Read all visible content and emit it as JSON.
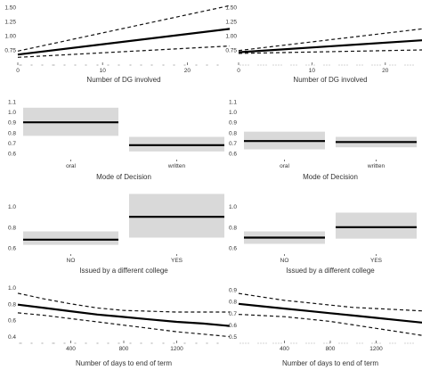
{
  "chart_data": [
    {
      "id": "p1",
      "type": "line",
      "xlabel": "Number of DG involved",
      "xlim": [
        0,
        25
      ],
      "ylim": [
        0.5,
        1.55
      ],
      "xticks": [
        0,
        10,
        20
      ],
      "yticks": [
        0.75,
        1.0,
        1.25,
        1.5
      ],
      "ytick_labels": [
        "0.75",
        "1.00",
        "1.25",
        "1.50"
      ],
      "x": [
        0,
        25
      ],
      "estimate": [
        0.67,
        1.12
      ],
      "ci_lower": [
        0.62,
        0.82
      ],
      "ci_upper": [
        0.73,
        1.53
      ]
    },
    {
      "id": "p2",
      "type": "line",
      "xlabel": "Number of DG involved",
      "xlim": [
        0,
        25
      ],
      "ylim": [
        0.5,
        1.55
      ],
      "xticks": [
        0,
        10,
        20
      ],
      "yticks": [
        0.75,
        1.0,
        1.25,
        1.5
      ],
      "ytick_labels": [
        "0.75",
        "1.00",
        "1.25",
        "1.50"
      ],
      "x": [
        0,
        25
      ],
      "estimate": [
        0.71,
        0.92
      ],
      "ci_lower": [
        0.69,
        0.75
      ],
      "ci_upper": [
        0.74,
        1.12
      ]
    },
    {
      "id": "p3",
      "type": "bar",
      "xlabel": "Mode of Decision",
      "ylim": [
        0.55,
        1.15
      ],
      "yticks": [
        0.6,
        0.7,
        0.8,
        0.9,
        1.0,
        1.1
      ],
      "ytick_labels": [
        "0.6",
        "0.7",
        "0.8",
        "0.9",
        "1.0",
        "1.1"
      ],
      "categories": [
        "oral",
        "written"
      ],
      "estimate": [
        0.9,
        0.68
      ],
      "ci_lower": [
        0.77,
        0.62
      ],
      "ci_upper": [
        1.04,
        0.76
      ]
    },
    {
      "id": "p4",
      "type": "bar",
      "xlabel": "Mode of Decision",
      "ylim": [
        0.55,
        1.15
      ],
      "yticks": [
        0.6,
        0.7,
        0.8,
        0.9,
        1.0,
        1.1
      ],
      "ytick_labels": [
        "0.6",
        "0.7",
        "0.8",
        "0.9",
        "1.0",
        "1.1"
      ],
      "categories": [
        "oral",
        "written"
      ],
      "estimate": [
        0.72,
        0.71
      ],
      "ci_lower": [
        0.64,
        0.66
      ],
      "ci_upper": [
        0.81,
        0.76
      ]
    },
    {
      "id": "p5",
      "type": "bar",
      "xlabel": "Issued by a different college",
      "ylim": [
        0.55,
        1.15
      ],
      "yticks": [
        0.6,
        0.8,
        1.0
      ],
      "ytick_labels": [
        "0.6",
        "0.8",
        "1.0"
      ],
      "categories": [
        "NO",
        "YES"
      ],
      "estimate": [
        0.68,
        0.9
      ],
      "ci_lower": [
        0.63,
        0.7
      ],
      "ci_upper": [
        0.76,
        1.12
      ]
    },
    {
      "id": "p6",
      "type": "bar",
      "xlabel": "Issued by a different college",
      "ylim": [
        0.55,
        1.15
      ],
      "yticks": [
        0.6,
        0.8,
        1.0
      ],
      "ytick_labels": [
        "0.6",
        "0.8",
        "1.0"
      ],
      "categories": [
        "NO",
        "YES"
      ],
      "estimate": [
        0.7,
        0.8
      ],
      "ci_lower": [
        0.64,
        0.69
      ],
      "ci_upper": [
        0.76,
        0.94
      ]
    },
    {
      "id": "p7",
      "type": "line",
      "xlabel": "Number of days to end of term",
      "xlim": [
        0,
        1600
      ],
      "ylim": [
        0.33,
        1.07
      ],
      "xticks": [
        400,
        800,
        1200
      ],
      "yticks": [
        0.4,
        0.6,
        0.8,
        1.0
      ],
      "ytick_labels": [
        "0.4",
        "0.6",
        "0.8",
        "1.0"
      ],
      "x": [
        0,
        200,
        400,
        600,
        800,
        1000,
        1200,
        1400,
        1600
      ],
      "estimate": [
        0.79,
        0.75,
        0.71,
        0.67,
        0.64,
        0.61,
        0.58,
        0.56,
        0.53
      ],
      "ci_lower": [
        0.69,
        0.66,
        0.62,
        0.58,
        0.54,
        0.5,
        0.46,
        0.43,
        0.4
      ],
      "ci_upper": [
        0.93,
        0.86,
        0.8,
        0.75,
        0.72,
        0.71,
        0.7,
        0.7,
        0.7
      ]
    },
    {
      "id": "p8",
      "type": "line",
      "xlabel": "Number of days to end of term",
      "xlim": [
        0,
        1600
      ],
      "ylim": [
        0.45,
        0.97
      ],
      "xticks": [
        400,
        800,
        1200
      ],
      "yticks": [
        0.5,
        0.6,
        0.7,
        0.8,
        0.9
      ],
      "ytick_labels": [
        "0.5",
        "0.6",
        "0.7",
        "0.8",
        "0.9"
      ],
      "x": [
        0,
        200,
        400,
        600,
        800,
        1000,
        1200,
        1400,
        1600
      ],
      "estimate": [
        0.78,
        0.76,
        0.74,
        0.72,
        0.7,
        0.68,
        0.66,
        0.64,
        0.62
      ],
      "ci_lower": [
        0.69,
        0.68,
        0.67,
        0.65,
        0.63,
        0.6,
        0.57,
        0.54,
        0.51
      ],
      "ci_upper": [
        0.87,
        0.84,
        0.81,
        0.79,
        0.77,
        0.75,
        0.74,
        0.73,
        0.72
      ]
    }
  ]
}
